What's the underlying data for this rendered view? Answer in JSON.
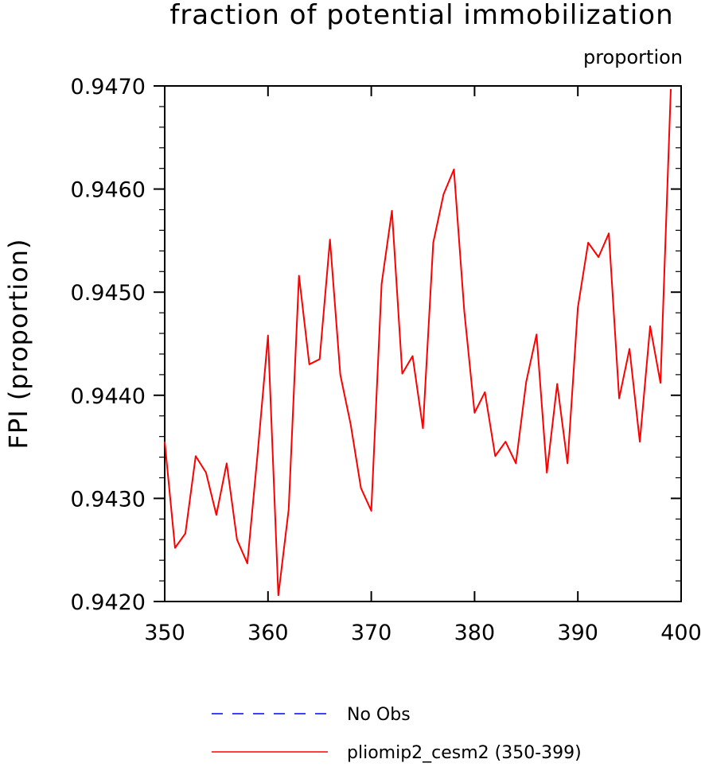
{
  "chart_data": {
    "type": "line",
    "title": "fraction of potential immobilization",
    "units": "proportion",
    "ylabel": "FPI  (proportion)",
    "xlabel": "",
    "xlim": [
      350,
      400
    ],
    "ylim": [
      0.942,
      0.947
    ],
    "x_ticks": [
      "350",
      "360",
      "370",
      "380",
      "390",
      "400"
    ],
    "y_ticks": [
      "0.9420",
      "0.9430",
      "0.9440",
      "0.9450",
      "0.9460",
      "0.9470"
    ],
    "series": [
      {
        "name": "pliomip2_cesm2 (350-399)",
        "color": "#ff0000",
        "style": "solid",
        "x": [
          350,
          351,
          352,
          353,
          354,
          355,
          356,
          357,
          358,
          359,
          360,
          361,
          362,
          363,
          364,
          365,
          366,
          367,
          368,
          369,
          370,
          371,
          372,
          373,
          374,
          375,
          376,
          377,
          378,
          379,
          380,
          381,
          382,
          383,
          384,
          385,
          386,
          387,
          388,
          389,
          390,
          391,
          392,
          393,
          394,
          395,
          396,
          397,
          398,
          399
        ],
        "values": [
          0.94355,
          0.94252,
          0.94266,
          0.94341,
          0.94325,
          0.94284,
          0.94334,
          0.9426,
          0.94237,
          0.94344,
          0.94458,
          0.94206,
          0.94289,
          0.94516,
          0.9443,
          0.94435,
          0.94551,
          0.9442,
          0.94372,
          0.9431,
          0.94288,
          0.94508,
          0.94579,
          0.94421,
          0.94438,
          0.94368,
          0.94548,
          0.94595,
          0.94619,
          0.94482,
          0.94383,
          0.94403,
          0.94341,
          0.94355,
          0.94334,
          0.94413,
          0.94459,
          0.94325,
          0.94411,
          0.94334,
          0.94485,
          0.94548,
          0.94534,
          0.94557,
          0.94397,
          0.94445,
          0.94355,
          0.94467,
          0.94412,
          0.94697
        ]
      }
    ],
    "legend": [
      {
        "label": "No Obs",
        "color": "#0000ff",
        "style": "dashed"
      },
      {
        "label": "pliomip2_cesm2 (350-399)",
        "color": "#ff0000",
        "style": "solid"
      }
    ],
    "legend_placement": "bottom",
    "grid": false
  }
}
